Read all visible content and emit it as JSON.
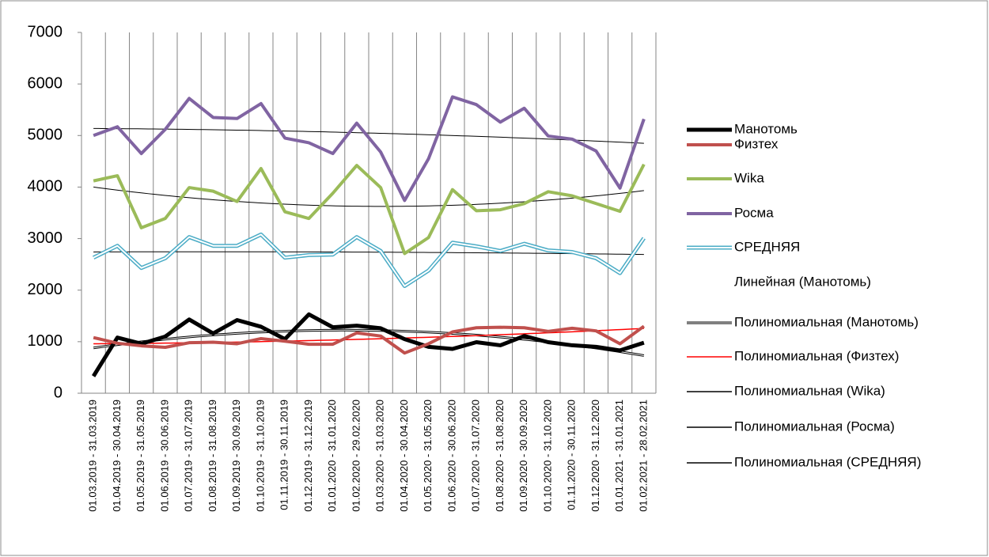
{
  "chart_data": {
    "type": "line",
    "categories": [
      "01.03.2019 - 31.03.2019",
      "01.04.2019 - 30.04.2019",
      "01.05.2019 - 31.05.2019",
      "01.06.2019 - 30.06.2019",
      "01.07.2019 - 31.07.2019",
      "01.08.2019 - 31.08.2019",
      "01.09.2019 - 30.09.2019",
      "01.10.2019 - 31.10.2019",
      "01.11.2019 - 30.11.2019",
      "01.12.2019 - 31.12.2019",
      "01.01.2020 - 31.01.2020",
      "01.02.2020 - 29.02.2020",
      "01.03.2020 - 31.03.2020",
      "01.04.2020 - 30.04.2020",
      "01.05.2020 - 31.05.2020",
      "01.06.2020 - 30.06.2020",
      "01.07.2020 - 31.07.2020",
      "01.08.2020 - 31.08.2020",
      "01.09.2020 - 30.09.2020",
      "01.10.2020 - 31.10.2020",
      "01.11.2020 - 30.11.2020",
      "01.12.2020 - 31.12.2020",
      "01.01.2021 - 31.01.2021",
      "01.02.2021 - 28.02.2021"
    ],
    "series": [
      {
        "name": "Манотомь",
        "color": "#000000",
        "values": [
          330,
          1080,
          960,
          1100,
          1430,
          1160,
          1420,
          1290,
          1050,
          1530,
          1280,
          1310,
          1260,
          1050,
          900,
          860,
          990,
          930,
          1110,
          990,
          930,
          900,
          830,
          980
        ]
      },
      {
        "name": "Физтех",
        "color": "#c0504d",
        "values": [
          1080,
          970,
          920,
          890,
          980,
          990,
          960,
          1060,
          1010,
          950,
          950,
          1170,
          1110,
          780,
          960,
          1190,
          1270,
          1280,
          1270,
          1200,
          1260,
          1210,
          960,
          1300
        ]
      },
      {
        "name": "Wika",
        "color": "#9bbb59",
        "values": [
          4120,
          4220,
          3210,
          3390,
          3990,
          3920,
          3720,
          4360,
          3520,
          3390,
          3880,
          4420,
          3990,
          2710,
          3020,
          3950,
          3540,
          3560,
          3680,
          3910,
          3830,
          3680,
          3530,
          4440
        ]
      },
      {
        "name": "Росма",
        "color": "#8064a2",
        "values": [
          5000,
          5170,
          4650,
          5120,
          5720,
          5350,
          5330,
          5620,
          4950,
          4860,
          4650,
          5240,
          4680,
          3740,
          4550,
          5750,
          5600,
          5260,
          5530,
          4990,
          4930,
          4700,
          3980,
          5320
        ]
      },
      {
        "name": "СРЕДНЯЯ",
        "color": "#4bacc6",
        "values": [
          2630,
          2860,
          2430,
          2620,
          3030,
          2860,
          2860,
          3080,
          2630,
          2680,
          2690,
          3030,
          2760,
          2080,
          2380,
          2920,
          2850,
          2760,
          2900,
          2770,
          2740,
          2620,
          2330,
          3010
        ]
      }
    ],
    "trendlines": [
      {
        "name": "Линейная (Манотомь)",
        "series": 0,
        "order": 1,
        "color": "none"
      },
      {
        "name": "Полиномиальная (Манотомь)",
        "series": 0,
        "order": 2,
        "color": "#000000",
        "double": true
      },
      {
        "name": "Полиномиальная (Физтех)",
        "series": 1,
        "order": 2,
        "color": "#ff0000"
      },
      {
        "name": "Полиномиальная (Wika)",
        "series": 2,
        "order": 2,
        "color": "#000000"
      },
      {
        "name": "Полиномиальная (Росма)",
        "series": 3,
        "order": 2,
        "color": "#000000"
      },
      {
        "name": "Полиномиальная (СРЕДНЯЯ)",
        "series": 4,
        "order": 2,
        "color": "#000000"
      }
    ],
    "ylim": [
      0,
      7000
    ],
    "yticks": [
      0,
      1000,
      2000,
      3000,
      4000,
      5000,
      6000,
      7000
    ],
    "grid": true
  }
}
